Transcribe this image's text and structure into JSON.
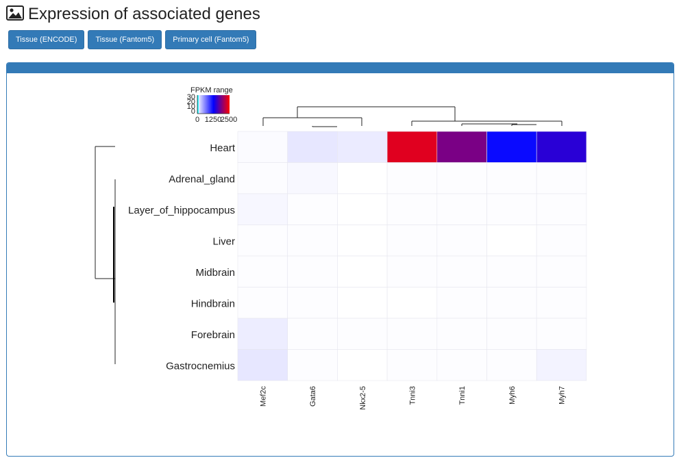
{
  "page": {
    "title": "Expression of associated genes",
    "title_icon": "image-icon",
    "buttons": [
      {
        "label": "Tissue (ENCODE)"
      },
      {
        "label": "Tissue (Fantom5)"
      },
      {
        "label": "Primary cell (Fantom5)"
      }
    ],
    "accent_color": "#337ab7"
  },
  "chart_data": {
    "type": "heatmap",
    "title": "",
    "xlabel": "",
    "ylabel": "",
    "rows": [
      "Heart",
      "Adrenal_gland",
      "Layer_of_hippocampus",
      "Liver",
      "Midbrain",
      "Hindbrain",
      "Forebrain",
      "Gastrocnemius"
    ],
    "columns": [
      "Mef2c",
      "Gata6",
      "Nkx2-5",
      "Tnni3",
      "Tnni1",
      "Myh6",
      "Myh7"
    ],
    "values": [
      [
        20,
        120,
        100,
        2350,
        1850,
        1200,
        1450
      ],
      [
        15,
        35,
        0,
        12,
        12,
        12,
        12
      ],
      [
        40,
        12,
        0,
        12,
        12,
        12,
        12
      ],
      [
        12,
        12,
        0,
        12,
        12,
        0,
        12
      ],
      [
        12,
        12,
        0,
        12,
        12,
        12,
        12
      ],
      [
        12,
        12,
        0,
        0,
        12,
        12,
        12
      ],
      [
        90,
        10,
        10,
        12,
        12,
        12,
        12
      ],
      [
        120,
        10,
        0,
        12,
        12,
        12,
        60
      ]
    ],
    "legend": {
      "title": "FPKM range",
      "range": [
        0,
        2500
      ],
      "x_ticks": [
        "0",
        "1250",
        "2500"
      ],
      "y_ticks": [
        "30",
        "20",
        "10",
        "0"
      ],
      "colors": [
        "#ffffff",
        "#0000ff",
        "#ff0000"
      ],
      "hist_color": "#00ffff"
    },
    "dendrograms": {
      "rows": true,
      "columns": true
    }
  }
}
